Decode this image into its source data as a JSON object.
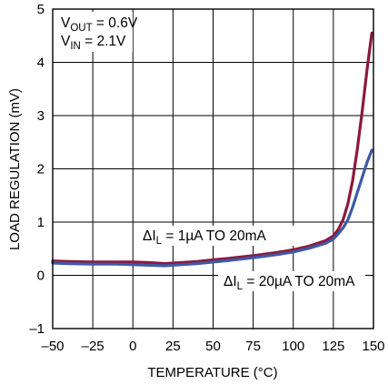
{
  "chart_data": {
    "type": "line",
    "title": "",
    "xlabel": "TEMPERATURE (°C)",
    "ylabel": "LOAD REGULATION (mV)",
    "xlim": [
      -50,
      150
    ],
    "ylim": [
      -1,
      5
    ],
    "x_ticks": [
      -50,
      -25,
      0,
      25,
      50,
      75,
      100,
      125,
      150
    ],
    "x_tick_labels": [
      "–50",
      "–25",
      "0",
      "25",
      "50",
      "75",
      "100",
      "125",
      "150"
    ],
    "y_ticks": [
      -1,
      0,
      1,
      2,
      3,
      4,
      5
    ],
    "y_tick_labels": [
      "–1",
      "0",
      "1",
      "2",
      "3",
      "4",
      "5"
    ],
    "grid": true,
    "conditions": [
      {
        "main": "V",
        "sub": "OUT",
        "rest": " = 0.6V"
      },
      {
        "main": "V",
        "sub": "IN",
        "rest": " = 2.1V"
      }
    ],
    "series": [
      {
        "label": {
          "main": "ΔI",
          "sub": "L",
          "rest": " = 1µA TO 20mA"
        },
        "color": "#8b1a3c",
        "x": [
          -50,
          -40,
          -25,
          -10,
          0,
          10,
          20,
          30,
          40,
          50,
          60,
          75,
          90,
          100,
          110,
          120,
          125,
          128,
          131,
          134,
          137,
          140,
          143,
          146,
          149
        ],
        "y": [
          0.27,
          0.26,
          0.25,
          0.25,
          0.25,
          0.24,
          0.22,
          0.24,
          0.26,
          0.29,
          0.32,
          0.37,
          0.43,
          0.48,
          0.55,
          0.65,
          0.74,
          0.86,
          1.04,
          1.34,
          1.78,
          2.38,
          3.08,
          3.86,
          4.55
        ]
      },
      {
        "label": {
          "main": "ΔI",
          "sub": "L",
          "rest": " = 20µA TO 20mA"
        },
        "color": "#3d5aa6",
        "x": [
          -50,
          -40,
          -25,
          -10,
          0,
          10,
          20,
          30,
          40,
          50,
          60,
          75,
          90,
          100,
          110,
          120,
          125,
          128,
          131,
          134,
          137,
          140,
          143,
          146,
          149
        ],
        "y": [
          0.23,
          0.22,
          0.21,
          0.21,
          0.2,
          0.19,
          0.18,
          0.2,
          0.22,
          0.25,
          0.28,
          0.33,
          0.39,
          0.44,
          0.51,
          0.6,
          0.68,
          0.78,
          0.89,
          1.04,
          1.28,
          1.56,
          1.84,
          2.12,
          2.35
        ]
      }
    ]
  }
}
